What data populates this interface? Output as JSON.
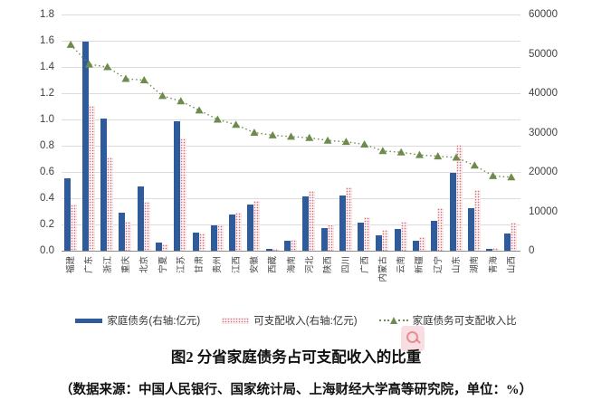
{
  "figure": {
    "title": "图2 分省家庭债务占可支配收入的比重",
    "source_note": "（数据来源：中国人民银行、国家统计局、上海财经大学高等研究院，单位：%）"
  },
  "legend": [
    {
      "label": "家庭债务(右轴:亿元)",
      "swatch": "blue-solid-bar",
      "color": "#2e5b9b"
    },
    {
      "label": "可支配收入(右轴:亿元)",
      "swatch": "pink-dotted-bar",
      "color": "#ce6b79"
    },
    {
      "label": "家庭债务可支配收入比",
      "swatch": "green-dotted-line-triangle",
      "color": "#6e8b4d"
    }
  ],
  "chart_data": {
    "type": "bar",
    "subtype": "grouped bars with overlaid line on secondary axis",
    "categories": [
      "福建",
      "广东",
      "浙江",
      "重庆",
      "北京",
      "宁夏",
      "江苏",
      "甘肃",
      "贵州",
      "江西",
      "安徽",
      "西藏",
      "海南",
      "河北",
      "陕西",
      "四川",
      "广西",
      "内蒙古",
      "云南",
      "新疆",
      "辽宁",
      "山东",
      "湖南",
      "青海",
      "山西"
    ],
    "series": [
      {
        "name": "家庭债务(右轴:亿元)",
        "type": "bar",
        "axis": "right",
        "color": "#2e5b9b",
        "values": [
          18300,
          53000,
          33500,
          9600,
          16300,
          2000,
          32800,
          4700,
          6400,
          9300,
          11700,
          400,
          2600,
          13700,
          5800,
          14000,
          7100,
          3900,
          5500,
          2500,
          7700,
          19800,
          10800,
          400,
          4300
        ]
      },
      {
        "name": "可支配收入(右轴:亿元)",
        "type": "bar",
        "axis": "right",
        "color": "#ce6b79",
        "values": [
          11700,
          36800,
          23700,
          7300,
          12400,
          1700,
          28600,
          4400,
          6400,
          9700,
          12700,
          450,
          2800,
          15100,
          6600,
          16000,
          8400,
          5200,
          7400,
          3500,
          10800,
          26800,
          15500,
          700,
          7100
        ]
      },
      {
        "name": "家庭债务可支配收入比",
        "type": "line",
        "axis": "left",
        "color": "#6e8b4d",
        "marker": "triangle",
        "linestyle": "dotted",
        "values": [
          1.57,
          1.42,
          1.4,
          1.31,
          1.3,
          1.18,
          1.14,
          1.07,
          1.0,
          0.96,
          0.9,
          0.88,
          0.87,
          0.86,
          0.84,
          0.83,
          0.81,
          0.76,
          0.75,
          0.73,
          0.72,
          0.71,
          0.65,
          0.57,
          0.56
        ]
      }
    ],
    "left_axis": {
      "min": 0.0,
      "max": 1.8,
      "step": 0.2,
      "ticks": [
        "0.0",
        "0.2",
        "0.4",
        "0.6",
        "0.8",
        "1.0",
        "1.2",
        "1.4",
        "1.6",
        "1.8"
      ]
    },
    "right_axis": {
      "min": 0,
      "max": 60000,
      "step": 10000,
      "ticks": [
        "0",
        "10000",
        "20000",
        "30000",
        "40000",
        "50000",
        "60000"
      ]
    },
    "grid": true,
    "legend_position": "bottom",
    "title": "图2 分省家庭债务占可支配收入的比重"
  }
}
